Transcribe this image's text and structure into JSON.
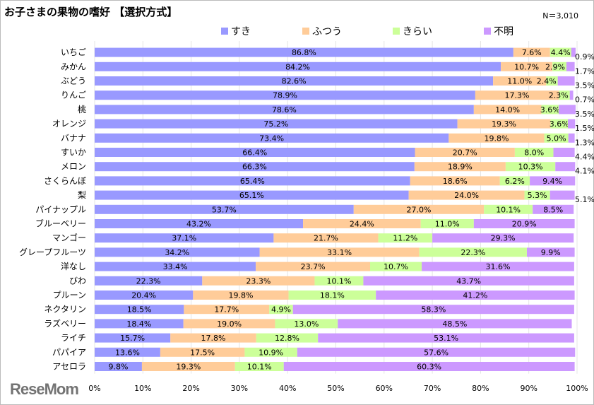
{
  "chart_data": {
    "type": "bar",
    "orientation": "horizontal",
    "stacked": true,
    "title": "お子さまの果物の嗜好 【選択方式】",
    "note": "N＝3,010",
    "xlim": [
      0,
      100
    ],
    "xticks": [
      "0%",
      "10%",
      "20%",
      "30%",
      "40%",
      "50%",
      "60%",
      "70%",
      "80%",
      "90%",
      "100%"
    ],
    "grid": true,
    "legend_position": "top",
    "categories": [
      "いちご",
      "みかん",
      "ぶどう",
      "りんご",
      "桃",
      "オレンジ",
      "バナナ",
      "すいか",
      "メロン",
      "さくらんぼ",
      "梨",
      "パイナップル",
      "ブルーベリー",
      "マンゴー",
      "グレープフルーツ",
      "洋なし",
      "びわ",
      "プルーン",
      "ネクタリン",
      "ラズベリー",
      "ライチ",
      "パパイア",
      "アセロラ"
    ],
    "series": [
      {
        "name": "すき",
        "color": "#9999ff",
        "values": [
          86.8,
          84.2,
          82.6,
          78.9,
          78.6,
          75.2,
          73.4,
          66.4,
          66.3,
          65.4,
          65.1,
          53.7,
          43.2,
          37.1,
          34.2,
          33.4,
          22.3,
          20.4,
          18.5,
          18.4,
          15.7,
          13.6,
          9.8
        ]
      },
      {
        "name": "ふつう",
        "color": "#ffcc99",
        "values": [
          7.6,
          10.7,
          11.0,
          17.3,
          14.0,
          19.3,
          19.8,
          20.7,
          18.9,
          18.6,
          24.0,
          27.0,
          24.4,
          21.7,
          33.1,
          23.7,
          23.3,
          19.8,
          17.7,
          19.0,
          17.8,
          17.5,
          19.3
        ]
      },
      {
        "name": "きらい",
        "color": "#ccff99",
        "values": [
          4.4,
          2.9,
          2.4,
          2.3,
          3.6,
          3.6,
          5.0,
          8.0,
          10.3,
          6.2,
          5.3,
          10.1,
          11.0,
          11.2,
          22.3,
          10.7,
          10.1,
          18.1,
          4.9,
          13.0,
          12.8,
          10.9,
          10.1
        ]
      },
      {
        "name": "不明",
        "color": "#cc99ff",
        "values": [
          0.9,
          1.7,
          3.5,
          0.7,
          3.5,
          1.5,
          1.3,
          4.4,
          4.1,
          9.4,
          5.1,
          8.5,
          20.9,
          29.3,
          9.9,
          31.6,
          43.7,
          41.2,
          58.3,
          48.5,
          53.1,
          57.6,
          60.3
        ]
      }
    ]
  },
  "logo": "ReseMom"
}
